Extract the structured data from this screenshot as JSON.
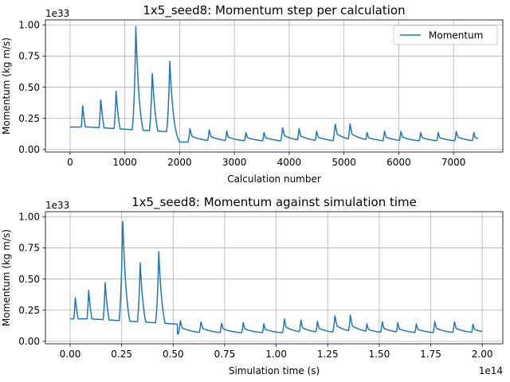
{
  "chart_data": [
    {
      "type": "line",
      "title": "1x5_seed8: Momentum step per calculation",
      "xlabel": "Calculation number",
      "ylabel": "Momentum (kg m/s)",
      "y_offset_label": "1e33",
      "xlim": [
        -450,
        7900
      ],
      "ylim": [
        -0.02,
        1.04
      ],
      "xticks": [
        0,
        1000,
        2000,
        3000,
        4000,
        5000,
        6000,
        7000
      ],
      "xtick_labels": [
        "0",
        "1000",
        "2000",
        "3000",
        "4000",
        "5000",
        "6000",
        "7000"
      ],
      "yticks": [
        0.0,
        0.25,
        0.5,
        0.75,
        1.0
      ],
      "ytick_labels": [
        "0.00",
        "0.25",
        "0.50",
        "0.75",
        "1.00"
      ],
      "grid": true,
      "legend": {
        "position": "top-right",
        "entries": [
          "Momentum"
        ]
      },
      "color": "#1f77b4",
      "x_max": 7450,
      "baseline": 0.18,
      "peaks": [
        {
          "x": 230,
          "y": 0.36
        },
        {
          "x": 560,
          "y": 0.41
        },
        {
          "x": 840,
          "y": 0.47
        },
        {
          "x": 1200,
          "y": 0.99
        },
        {
          "x": 1500,
          "y": 0.63
        },
        {
          "x": 1820,
          "y": 0.72
        },
        {
          "x": 2190,
          "y": 0.17
        },
        {
          "x": 2540,
          "y": 0.16
        },
        {
          "x": 2860,
          "y": 0.15
        },
        {
          "x": 3210,
          "y": 0.14
        },
        {
          "x": 3540,
          "y": 0.14
        },
        {
          "x": 3880,
          "y": 0.18
        },
        {
          "x": 4180,
          "y": 0.17
        },
        {
          "x": 4500,
          "y": 0.15
        },
        {
          "x": 4840,
          "y": 0.21
        },
        {
          "x": 5110,
          "y": 0.21
        },
        {
          "x": 5420,
          "y": 0.14
        },
        {
          "x": 5740,
          "y": 0.15
        },
        {
          "x": 6040,
          "y": 0.15
        },
        {
          "x": 6400,
          "y": 0.14
        },
        {
          "x": 6720,
          "y": 0.14
        },
        {
          "x": 7050,
          "y": 0.15
        },
        {
          "x": 7370,
          "y": 0.14
        }
      ]
    },
    {
      "type": "line",
      "title": "1x5_seed8: Momentum against simulation time",
      "xlabel": "Simulation time (s)",
      "ylabel": "Momentum (kg m/s)",
      "y_offset_label": "1e33",
      "x_offset_label": "1e14",
      "xlim": [
        -0.12,
        2.1
      ],
      "ylim": [
        -0.02,
        1.04
      ],
      "xticks": [
        0.0,
        0.25,
        0.5,
        0.75,
        1.0,
        1.25,
        1.5,
        1.75,
        2.0
      ],
      "xtick_labels": [
        "0.00",
        "0.25",
        "0.50",
        "0.75",
        "1.00",
        "1.25",
        "1.50",
        "1.75",
        "2.00"
      ],
      "yticks": [
        0.0,
        0.25,
        0.5,
        0.75,
        1.0
      ],
      "ytick_labels": [
        "0.00",
        "0.25",
        "0.50",
        "0.75",
        "1.00"
      ],
      "grid": true,
      "color": "#1f77b4",
      "x_max": 2.0,
      "baseline": 0.18,
      "peaks": [
        {
          "x": 0.025,
          "y": 0.36
        },
        {
          "x": 0.09,
          "y": 0.41
        },
        {
          "x": 0.17,
          "y": 0.47
        },
        {
          "x": 0.255,
          "y": 0.99
        },
        {
          "x": 0.34,
          "y": 0.63
        },
        {
          "x": 0.43,
          "y": 0.72
        },
        {
          "x": 0.535,
          "y": 0.17
        },
        {
          "x": 0.635,
          "y": 0.16
        },
        {
          "x": 0.735,
          "y": 0.15
        },
        {
          "x": 0.84,
          "y": 0.15
        },
        {
          "x": 0.94,
          "y": 0.14
        },
        {
          "x": 1.04,
          "y": 0.18
        },
        {
          "x": 1.12,
          "y": 0.17
        },
        {
          "x": 1.2,
          "y": 0.16
        },
        {
          "x": 1.285,
          "y": 0.21
        },
        {
          "x": 1.36,
          "y": 0.21
        },
        {
          "x": 1.44,
          "y": 0.14
        },
        {
          "x": 1.515,
          "y": 0.16
        },
        {
          "x": 1.59,
          "y": 0.15
        },
        {
          "x": 1.68,
          "y": 0.14
        },
        {
          "x": 1.77,
          "y": 0.16
        },
        {
          "x": 1.865,
          "y": 0.16
        },
        {
          "x": 1.955,
          "y": 0.14
        }
      ]
    }
  ]
}
